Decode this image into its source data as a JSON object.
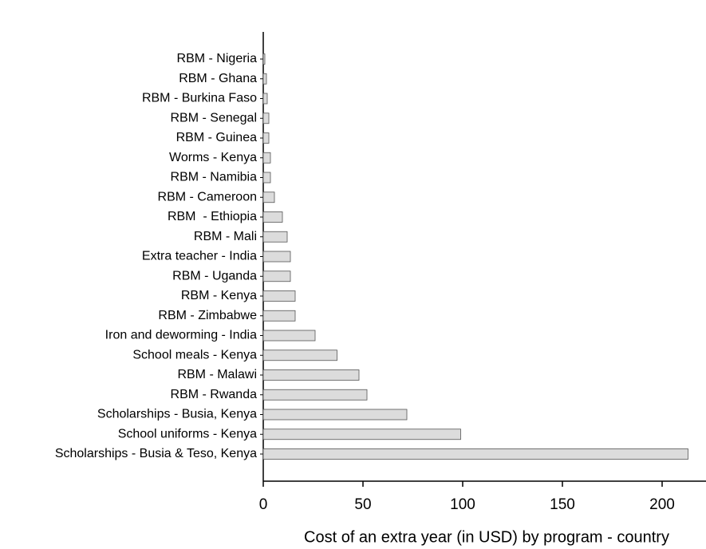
{
  "chart_data": {
    "type": "barh",
    "x_label": "Cost of an extra year (in USD) by program - country",
    "categories": [
      "RBM - Nigeria",
      "RBM - Ghana",
      "RBM - Burkina Faso",
      "RBM - Senegal",
      "RBM - Guinea",
      "Worms - Kenya",
      "RBM - Namibia",
      "RBM - Cameroon",
      "RBM  - Ethiopia",
      "RBM - Mali",
      "Extra teacher - India",
      "RBM - Uganda",
      "RBM - Kenya",
      "RBM - Zimbabwe",
      "Iron and deworming - India",
      "School meals - Kenya",
      "RBM - Malawi",
      "RBM - Rwanda",
      "Scholarships - Busia, Kenya",
      "School uniforms - Kenya",
      "Scholarships - Busia & Teso, Kenya"
    ],
    "values": [
      0.8,
      1.6,
      2,
      2.8,
      2.8,
      3.6,
      3.6,
      5.6,
      9.6,
      12,
      13.6,
      13.6,
      16,
      16,
      26,
      37,
      48,
      52,
      72,
      99,
      213
    ],
    "color": "#dcdcdc",
    "xlim": [
      0,
      222
    ],
    "xticks": [
      0,
      50,
      100,
      150,
      200
    ]
  }
}
